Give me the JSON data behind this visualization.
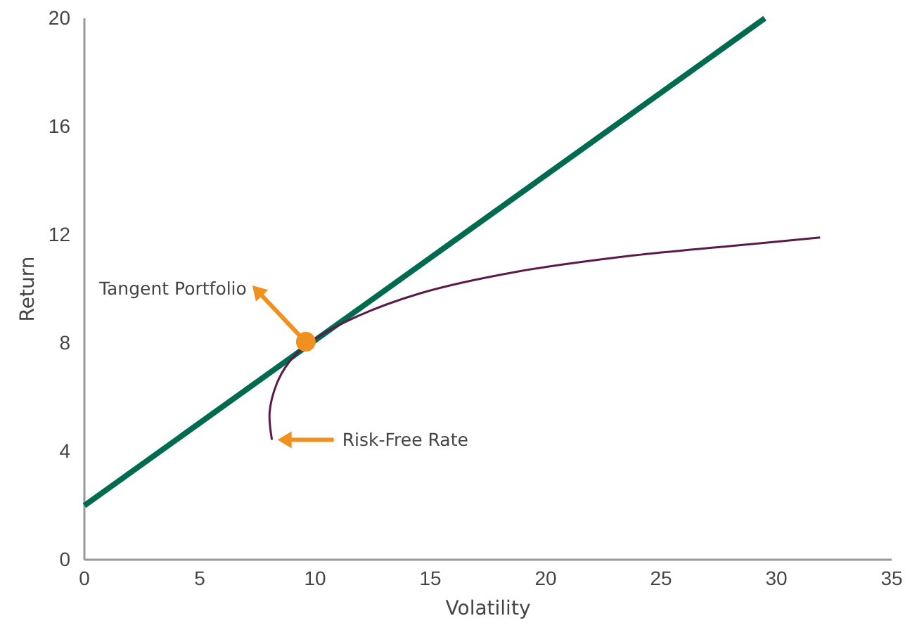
{
  "chart_data": {
    "type": "line",
    "xlabel": "Volatility",
    "ylabel": "Return",
    "xlim": [
      0,
      35
    ],
    "xticks": [
      0,
      5,
      10,
      15,
      20,
      25,
      30,
      35
    ],
    "ylim": [
      0,
      20
    ],
    "yticks": [
      0,
      4,
      8,
      12,
      16,
      20
    ],
    "grid": false,
    "series": [
      {
        "color": "#006b4f",
        "x": [
          0,
          29.5
        ],
        "values": [
          2,
          20
        ]
      },
      {
        "color": "#5a1a4a",
        "x": [
          8.13,
          8.03,
          8.33,
          8.84,
          9.65,
          11.6,
          14.6,
          18.7,
          23.8,
          27.9,
          31.9
        ],
        "values": [
          4.43,
          5.44,
          6.48,
          7.26,
          7.95,
          8.9,
          9.85,
          10.63,
          11.24,
          11.58,
          11.9
        ]
      },
      {
        "type": "scatter",
        "color": "#f0901e",
        "x": [
          9.6
        ],
        "values": [
          8.05
        ]
      }
    ],
    "annotations": [
      "Tangent Portfolio",
      "Risk-Free Rate"
    ]
  }
}
